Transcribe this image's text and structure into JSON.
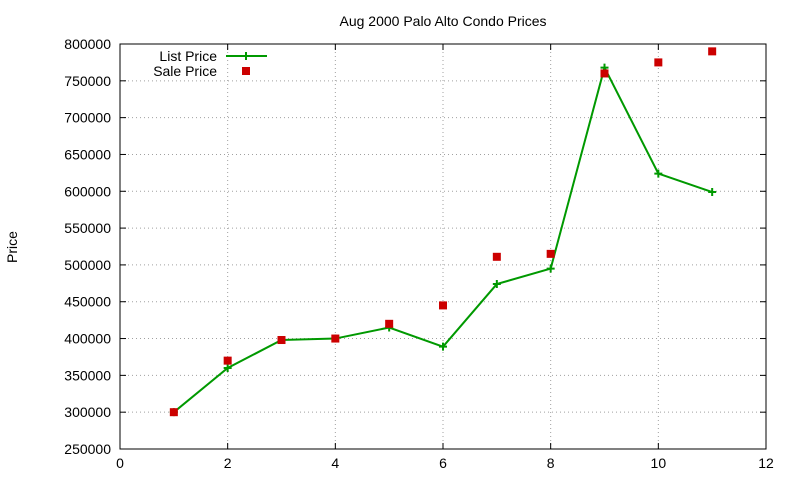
{
  "chart_data": {
    "type": "line",
    "title": "Aug 2000 Palo Alto Condo Prices",
    "xlabel": "",
    "ylabel": "Price",
    "xlim": [
      0,
      12
    ],
    "ylim": [
      250000,
      800000
    ],
    "xticks": [
      0,
      2,
      4,
      6,
      8,
      10,
      12
    ],
    "yticks": [
      250000,
      300000,
      350000,
      400000,
      450000,
      500000,
      550000,
      600000,
      650000,
      700000,
      750000,
      800000
    ],
    "grid": true,
    "legend_position": "top-left",
    "series": [
      {
        "name": "List Price",
        "style": "line-with-plus-markers",
        "color": "#009900",
        "x": [
          1,
          2,
          3,
          4,
          5,
          6,
          7,
          8,
          9,
          10,
          11
        ],
        "values": [
          300000,
          360000,
          398000,
          400000,
          415000,
          389000,
          474000,
          495000,
          768000,
          624000,
          599000
        ]
      },
      {
        "name": "Sale Price",
        "style": "square-markers",
        "color": "#cc0000",
        "x": [
          1,
          2,
          3,
          4,
          5,
          6,
          7,
          8,
          9,
          10,
          11
        ],
        "values": [
          300000,
          370000,
          398000,
          400000,
          420000,
          445000,
          511000,
          515000,
          760000,
          775000,
          790000
        ]
      }
    ]
  }
}
